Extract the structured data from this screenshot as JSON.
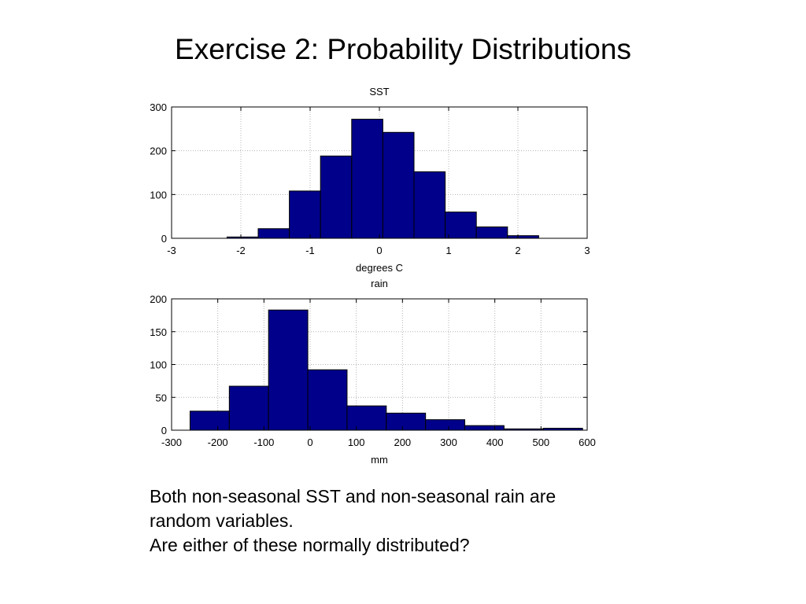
{
  "page": {
    "title": "Exercise 2: Probability Distributions"
  },
  "chart_data": [
    {
      "type": "bar",
      "title": "SST",
      "xlabel": "degrees C",
      "ylabel": "",
      "xlim": [
        -3,
        3
      ],
      "ylim": [
        0,
        300
      ],
      "xticks": [
        -3,
        -2,
        -1,
        0,
        1,
        2,
        3
      ],
      "yticks": [
        0,
        100,
        200,
        300
      ],
      "grid": true,
      "bar_color": "#00008b",
      "bins": [
        {
          "x0": -2.2,
          "x1": -1.75,
          "value": 3
        },
        {
          "x0": -1.75,
          "x1": -1.3,
          "value": 22
        },
        {
          "x0": -1.3,
          "x1": -0.85,
          "value": 108
        },
        {
          "x0": -0.85,
          "x1": -0.4,
          "value": 188
        },
        {
          "x0": -0.4,
          "x1": 0.05,
          "value": 272
        },
        {
          "x0": 0.05,
          "x1": 0.5,
          "value": 242
        },
        {
          "x0": 0.5,
          "x1": 0.95,
          "value": 152
        },
        {
          "x0": 0.95,
          "x1": 1.4,
          "value": 60
        },
        {
          "x0": 1.4,
          "x1": 1.85,
          "value": 26
        },
        {
          "x0": 1.85,
          "x1": 2.3,
          "value": 6
        }
      ]
    },
    {
      "type": "bar",
      "title": "rain",
      "xlabel": "mm",
      "ylabel": "",
      "xlim": [
        -300,
        600
      ],
      "ylim": [
        0,
        200
      ],
      "xticks": [
        -300,
        -200,
        -100,
        0,
        100,
        200,
        300,
        400,
        500,
        600
      ],
      "yticks": [
        0,
        50,
        100,
        150,
        200
      ],
      "grid": true,
      "bar_color": "#00008b",
      "bins": [
        {
          "x0": -260,
          "x1": -175,
          "value": 29
        },
        {
          "x0": -175,
          "x1": -90,
          "value": 67
        },
        {
          "x0": -90,
          "x1": -5,
          "value": 183
        },
        {
          "x0": -5,
          "x1": 80,
          "value": 92
        },
        {
          "x0": 80,
          "x1": 165,
          "value": 37
        },
        {
          "x0": 165,
          "x1": 250,
          "value": 26
        },
        {
          "x0": 250,
          "x1": 335,
          "value": 16
        },
        {
          "x0": 335,
          "x1": 420,
          "value": 7
        },
        {
          "x0": 420,
          "x1": 505,
          "value": 2
        },
        {
          "x0": 505,
          "x1": 590,
          "value": 3
        }
      ]
    }
  ],
  "caption": {
    "line1": "Both non-seasonal SST and non-seasonal rain are",
    "line2": "random variables.",
    "line3": "Are either of these normally distributed?"
  }
}
